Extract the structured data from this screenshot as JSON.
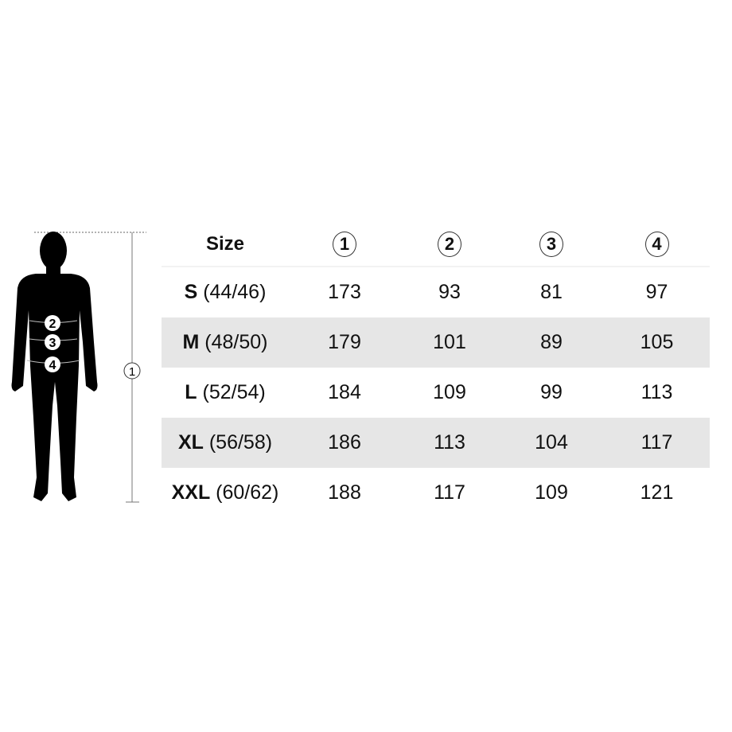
{
  "figure": {
    "markers": [
      "1",
      "2",
      "3",
      "4"
    ],
    "height_marker": "1"
  },
  "table": {
    "header": {
      "size_label": "Size",
      "columns": [
        "1",
        "2",
        "3",
        "4"
      ]
    },
    "rows": [
      {
        "code": "S",
        "eu": "(44/46)",
        "values": [
          "173",
          "93",
          "81",
          "97"
        ]
      },
      {
        "code": "M",
        "eu": "(48/50)",
        "values": [
          "179",
          "101",
          "89",
          "105"
        ]
      },
      {
        "code": "L",
        "eu": "(52/54)",
        "values": [
          "184",
          "109",
          "99",
          "113"
        ]
      },
      {
        "code": "XL",
        "eu": "(56/58)",
        "values": [
          "186",
          "113",
          "104",
          "117"
        ]
      },
      {
        "code": "XXL",
        "eu": "(60/62)",
        "values": [
          "188",
          "117",
          "109",
          "121"
        ]
      }
    ],
    "shaded_color": "#e6e6e6"
  }
}
